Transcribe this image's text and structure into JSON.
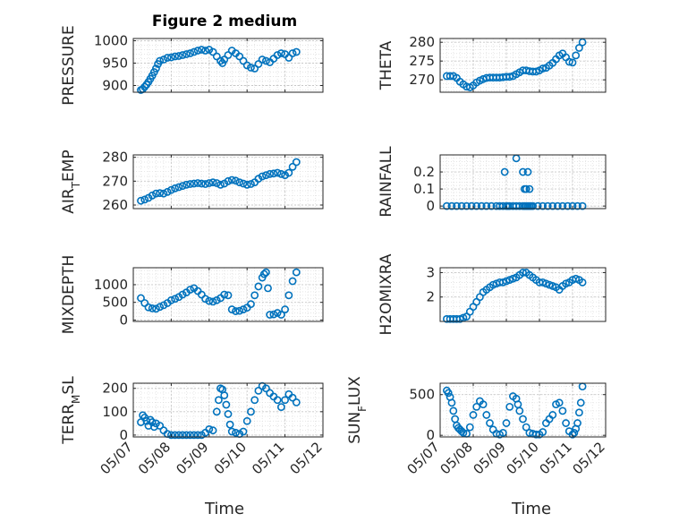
{
  "figure": {
    "title": "Figure 2 medium",
    "xlabel": "Time",
    "marker_color": "#0072BD",
    "grid": "major and minor, dotted",
    "x_tick_labels": [
      "05/07",
      "05/08",
      "05/09",
      "05/10",
      "05/11",
      "05/12"
    ]
  },
  "chart_data": [
    {
      "type": "scatter",
      "name": "PRESSURE",
      "ylabel": "PRESSURE",
      "ylim": [
        885,
        1005
      ],
      "yticks": [
        900,
        950,
        1000
      ],
      "x": [
        7.2,
        7.25,
        7.3,
        7.35,
        7.4,
        7.45,
        7.5,
        7.55,
        7.6,
        7.65,
        7.7,
        7.8,
        7.9,
        8.0,
        8.1,
        8.2,
        8.3,
        8.4,
        8.5,
        8.6,
        8.7,
        8.8,
        8.9,
        9.0,
        9.1,
        9.2,
        9.3,
        9.35,
        9.4,
        9.5,
        9.6,
        9.7,
        9.8,
        9.9,
        10.0,
        10.1,
        10.2,
        10.3,
        10.4,
        10.5,
        10.6,
        10.7,
        10.8,
        10.9,
        11.0,
        11.1,
        11.2,
        11.3
      ],
      "y": [
        890,
        892,
        897,
        902,
        908,
        915,
        922,
        930,
        938,
        948,
        955,
        958,
        962,
        963,
        965,
        966,
        968,
        970,
        972,
        975,
        978,
        980,
        978,
        980,
        975,
        965,
        955,
        950,
        958,
        968,
        978,
        972,
        965,
        955,
        945,
        940,
        938,
        948,
        958,
        955,
        952,
        960,
        968,
        972,
        970,
        962,
        972,
        975
      ]
    },
    {
      "type": "scatter",
      "name": "THETA",
      "ylabel": "THETA",
      "ylim": [
        266.7,
        281
      ],
      "yticks": [
        270,
        275,
        280
      ],
      "x": [
        7.2,
        7.3,
        7.4,
        7.5,
        7.6,
        7.7,
        7.8,
        7.9,
        8.0,
        8.1,
        8.2,
        8.3,
        8.4,
        8.5,
        8.6,
        8.7,
        8.8,
        8.9,
        9.0,
        9.1,
        9.2,
        9.3,
        9.4,
        9.5,
        9.6,
        9.7,
        9.8,
        9.9,
        10.0,
        10.1,
        10.2,
        10.3,
        10.4,
        10.5,
        10.6,
        10.7,
        10.8,
        10.9,
        11.0,
        11.1,
        11.2,
        11.3
      ],
      "y": [
        271,
        271,
        271,
        270.5,
        269.5,
        268.8,
        268.2,
        268,
        268.5,
        269.3,
        269.8,
        270.2,
        270.5,
        270.6,
        270.6,
        270.6,
        270.6,
        270.7,
        270.8,
        270.8,
        271,
        271.5,
        272,
        272.5,
        272.5,
        272.3,
        272.2,
        272.2,
        272.5,
        273,
        273.2,
        273.8,
        274.5,
        275.5,
        276.5,
        277,
        276,
        274.8,
        274.6,
        276.5,
        278.5,
        280
      ]
    },
    {
      "type": "scatter",
      "name": "AIR_TEMP",
      "ylabel": "AIR_TEMP",
      "ylim": [
        258.5,
        281
      ],
      "yticks": [
        260,
        270,
        280
      ],
      "x": [
        7.2,
        7.3,
        7.4,
        7.5,
        7.6,
        7.7,
        7.8,
        7.9,
        8.0,
        8.1,
        8.2,
        8.3,
        8.4,
        8.5,
        8.6,
        8.7,
        8.8,
        8.9,
        9.0,
        9.1,
        9.2,
        9.3,
        9.4,
        9.5,
        9.6,
        9.7,
        9.8,
        9.9,
        10.0,
        10.1,
        10.2,
        10.3,
        10.4,
        10.5,
        10.6,
        10.7,
        10.8,
        10.9,
        11.0,
        11.1,
        11.2,
        11.3
      ],
      "y": [
        261.8,
        262.3,
        263,
        264,
        264.8,
        265,
        264.8,
        265.5,
        266.3,
        267,
        267.5,
        268,
        268.5,
        268.8,
        269,
        269.2,
        269,
        268.8,
        269.2,
        269.5,
        269.2,
        268.5,
        269,
        270,
        270.5,
        270.2,
        269.5,
        269,
        268.5,
        268.8,
        269.5,
        271,
        272,
        272.5,
        273,
        273.2,
        273.5,
        273,
        272.5,
        273.5,
        276,
        278
      ]
    },
    {
      "type": "scatter",
      "name": "RAINFALL",
      "ylabel": "RAINFALL",
      "ylim": [
        -0.015,
        0.3
      ],
      "yticks": [
        0,
        0.1,
        0.2
      ],
      "x": [
        7.2,
        7.35,
        7.5,
        7.65,
        7.8,
        7.95,
        8.1,
        8.25,
        8.4,
        8.55,
        8.7,
        8.8,
        8.9,
        9.0,
        9.05,
        9.1,
        9.2,
        9.3,
        9.4,
        9.5,
        9.55,
        9.6,
        9.65,
        9.7,
        9.75,
        9.8,
        9.95,
        10.1,
        10.25,
        10.4,
        10.55,
        10.7,
        10.85,
        11.0,
        11.15,
        11.3,
        8.95,
        9.3,
        9.5,
        9.55,
        9.65,
        9.7,
        9.6
      ],
      "y": [
        0,
        0,
        0,
        0,
        0,
        0,
        0,
        0,
        0,
        0,
        0,
        0,
        0,
        0,
        0,
        0,
        0,
        0,
        0,
        0,
        0,
        0,
        0,
        0,
        0,
        0,
        0,
        0,
        0,
        0,
        0,
        0,
        0,
        0,
        0,
        0,
        0.2,
        0.28,
        0.2,
        0.1,
        0.2,
        0.1,
        0.1
      ]
    },
    {
      "type": "scatter",
      "name": "MIXDEPTH",
      "ylabel": "MIXDEPTH",
      "ylim": [
        -40,
        1480
      ],
      "yticks": [
        0,
        500,
        1000
      ],
      "x": [
        7.2,
        7.3,
        7.4,
        7.5,
        7.6,
        7.7,
        7.8,
        7.9,
        8.0,
        8.1,
        8.2,
        8.3,
        8.4,
        8.5,
        8.6,
        8.7,
        8.8,
        8.9,
        9.0,
        9.1,
        9.2,
        9.3,
        9.4,
        9.5,
        9.6,
        9.7,
        9.8,
        9.9,
        10.0,
        10.1,
        10.2,
        10.3,
        10.4,
        10.45,
        10.5,
        10.55,
        10.6,
        10.7,
        10.8,
        10.9,
        11.0,
        11.1,
        11.2,
        11.3
      ],
      "y": [
        620,
        480,
        360,
        330,
        320,
        370,
        420,
        480,
        560,
        600,
        650,
        720,
        780,
        860,
        900,
        820,
        720,
        600,
        540,
        520,
        560,
        620,
        720,
        700,
        300,
        250,
        260,
        300,
        350,
        450,
        700,
        950,
        1200,
        1300,
        1350,
        900,
        150,
        160,
        200,
        150,
        300,
        700,
        1100,
        1350
      ]
    },
    {
      "type": "scatter",
      "name": "H2OMIXRA",
      "ylabel": "H2OMIXRA",
      "ylim": [
        1.0,
        3.2
      ],
      "yticks": [
        2,
        3
      ],
      "x": [
        7.2,
        7.3,
        7.4,
        7.5,
        7.6,
        7.7,
        7.8,
        7.9,
        8.0,
        8.1,
        8.2,
        8.3,
        8.4,
        8.5,
        8.6,
        8.7,
        8.8,
        8.9,
        9.0,
        9.1,
        9.2,
        9.3,
        9.4,
        9.5,
        9.6,
        9.7,
        9.8,
        9.9,
        10.0,
        10.1,
        10.2,
        10.3,
        10.4,
        10.5,
        10.6,
        10.7,
        10.8,
        10.9,
        11.0,
        11.1,
        11.2,
        11.3
      ],
      "y": [
        1.1,
        1.1,
        1.1,
        1.1,
        1.1,
        1.15,
        1.2,
        1.4,
        1.6,
        1.8,
        2.0,
        2.2,
        2.3,
        2.4,
        2.5,
        2.55,
        2.6,
        2.6,
        2.65,
        2.7,
        2.75,
        2.8,
        2.9,
        3.0,
        3.0,
        2.9,
        2.8,
        2.7,
        2.6,
        2.6,
        2.55,
        2.5,
        2.45,
        2.4,
        2.3,
        2.45,
        2.55,
        2.6,
        2.7,
        2.75,
        2.7,
        2.6
      ]
    },
    {
      "type": "scatter",
      "name": "TERR_MSL",
      "ylabel": "TERR_MSL",
      "ylim": [
        -8,
        222
      ],
      "yticks": [
        0,
        100,
        200
      ],
      "x": [
        7.2,
        7.25,
        7.3,
        7.35,
        7.4,
        7.45,
        7.5,
        7.55,
        7.6,
        7.7,
        7.8,
        7.9,
        8.0,
        8.1,
        8.2,
        8.3,
        8.4,
        8.5,
        8.6,
        8.7,
        8.8,
        8.9,
        9.0,
        9.1,
        9.2,
        9.25,
        9.3,
        9.35,
        9.4,
        9.45,
        9.5,
        9.55,
        9.6,
        9.7,
        9.8,
        9.9,
        10.0,
        10.1,
        10.2,
        10.3,
        10.4,
        10.5,
        10.6,
        10.7,
        10.8,
        10.9,
        11.0,
        11.1,
        11.2,
        11.3
      ],
      "y": [
        55,
        85,
        75,
        60,
        40,
        65,
        55,
        35,
        50,
        40,
        20,
        5,
        0,
        0,
        0,
        0,
        0,
        0,
        0,
        0,
        0,
        10,
        25,
        20,
        100,
        150,
        200,
        195,
        170,
        130,
        90,
        45,
        15,
        10,
        5,
        15,
        60,
        100,
        150,
        190,
        210,
        200,
        180,
        165,
        150,
        120,
        150,
        175,
        160,
        140
      ]
    },
    {
      "type": "scatter",
      "name": "SUN_FLUX",
      "ylabel": "SUN_FLUX",
      "ylim": [
        -20,
        640
      ],
      "yticks": [
        0,
        500
      ],
      "x": [
        7.2,
        7.25,
        7.3,
        7.35,
        7.4,
        7.45,
        7.5,
        7.55,
        7.6,
        7.65,
        7.7,
        7.8,
        7.9,
        8.0,
        8.1,
        8.2,
        8.3,
        8.4,
        8.5,
        8.6,
        8.7,
        8.8,
        8.9,
        9.0,
        9.1,
        9.2,
        9.3,
        9.35,
        9.4,
        9.5,
        9.6,
        9.7,
        9.8,
        9.9,
        10.0,
        10.1,
        10.2,
        10.3,
        10.4,
        10.5,
        10.6,
        10.7,
        10.8,
        10.9,
        11.0,
        11.05,
        11.1,
        11.15,
        11.2,
        11.25,
        11.3
      ],
      "y": [
        550,
        520,
        470,
        400,
        300,
        200,
        120,
        90,
        70,
        50,
        30,
        20,
        100,
        250,
        350,
        420,
        380,
        250,
        150,
        70,
        20,
        10,
        30,
        150,
        350,
        480,
        450,
        380,
        300,
        200,
        100,
        30,
        20,
        10,
        10,
        40,
        150,
        200,
        250,
        380,
        400,
        300,
        150,
        50,
        10,
        30,
        80,
        150,
        280,
        400,
        600
      ]
    }
  ]
}
